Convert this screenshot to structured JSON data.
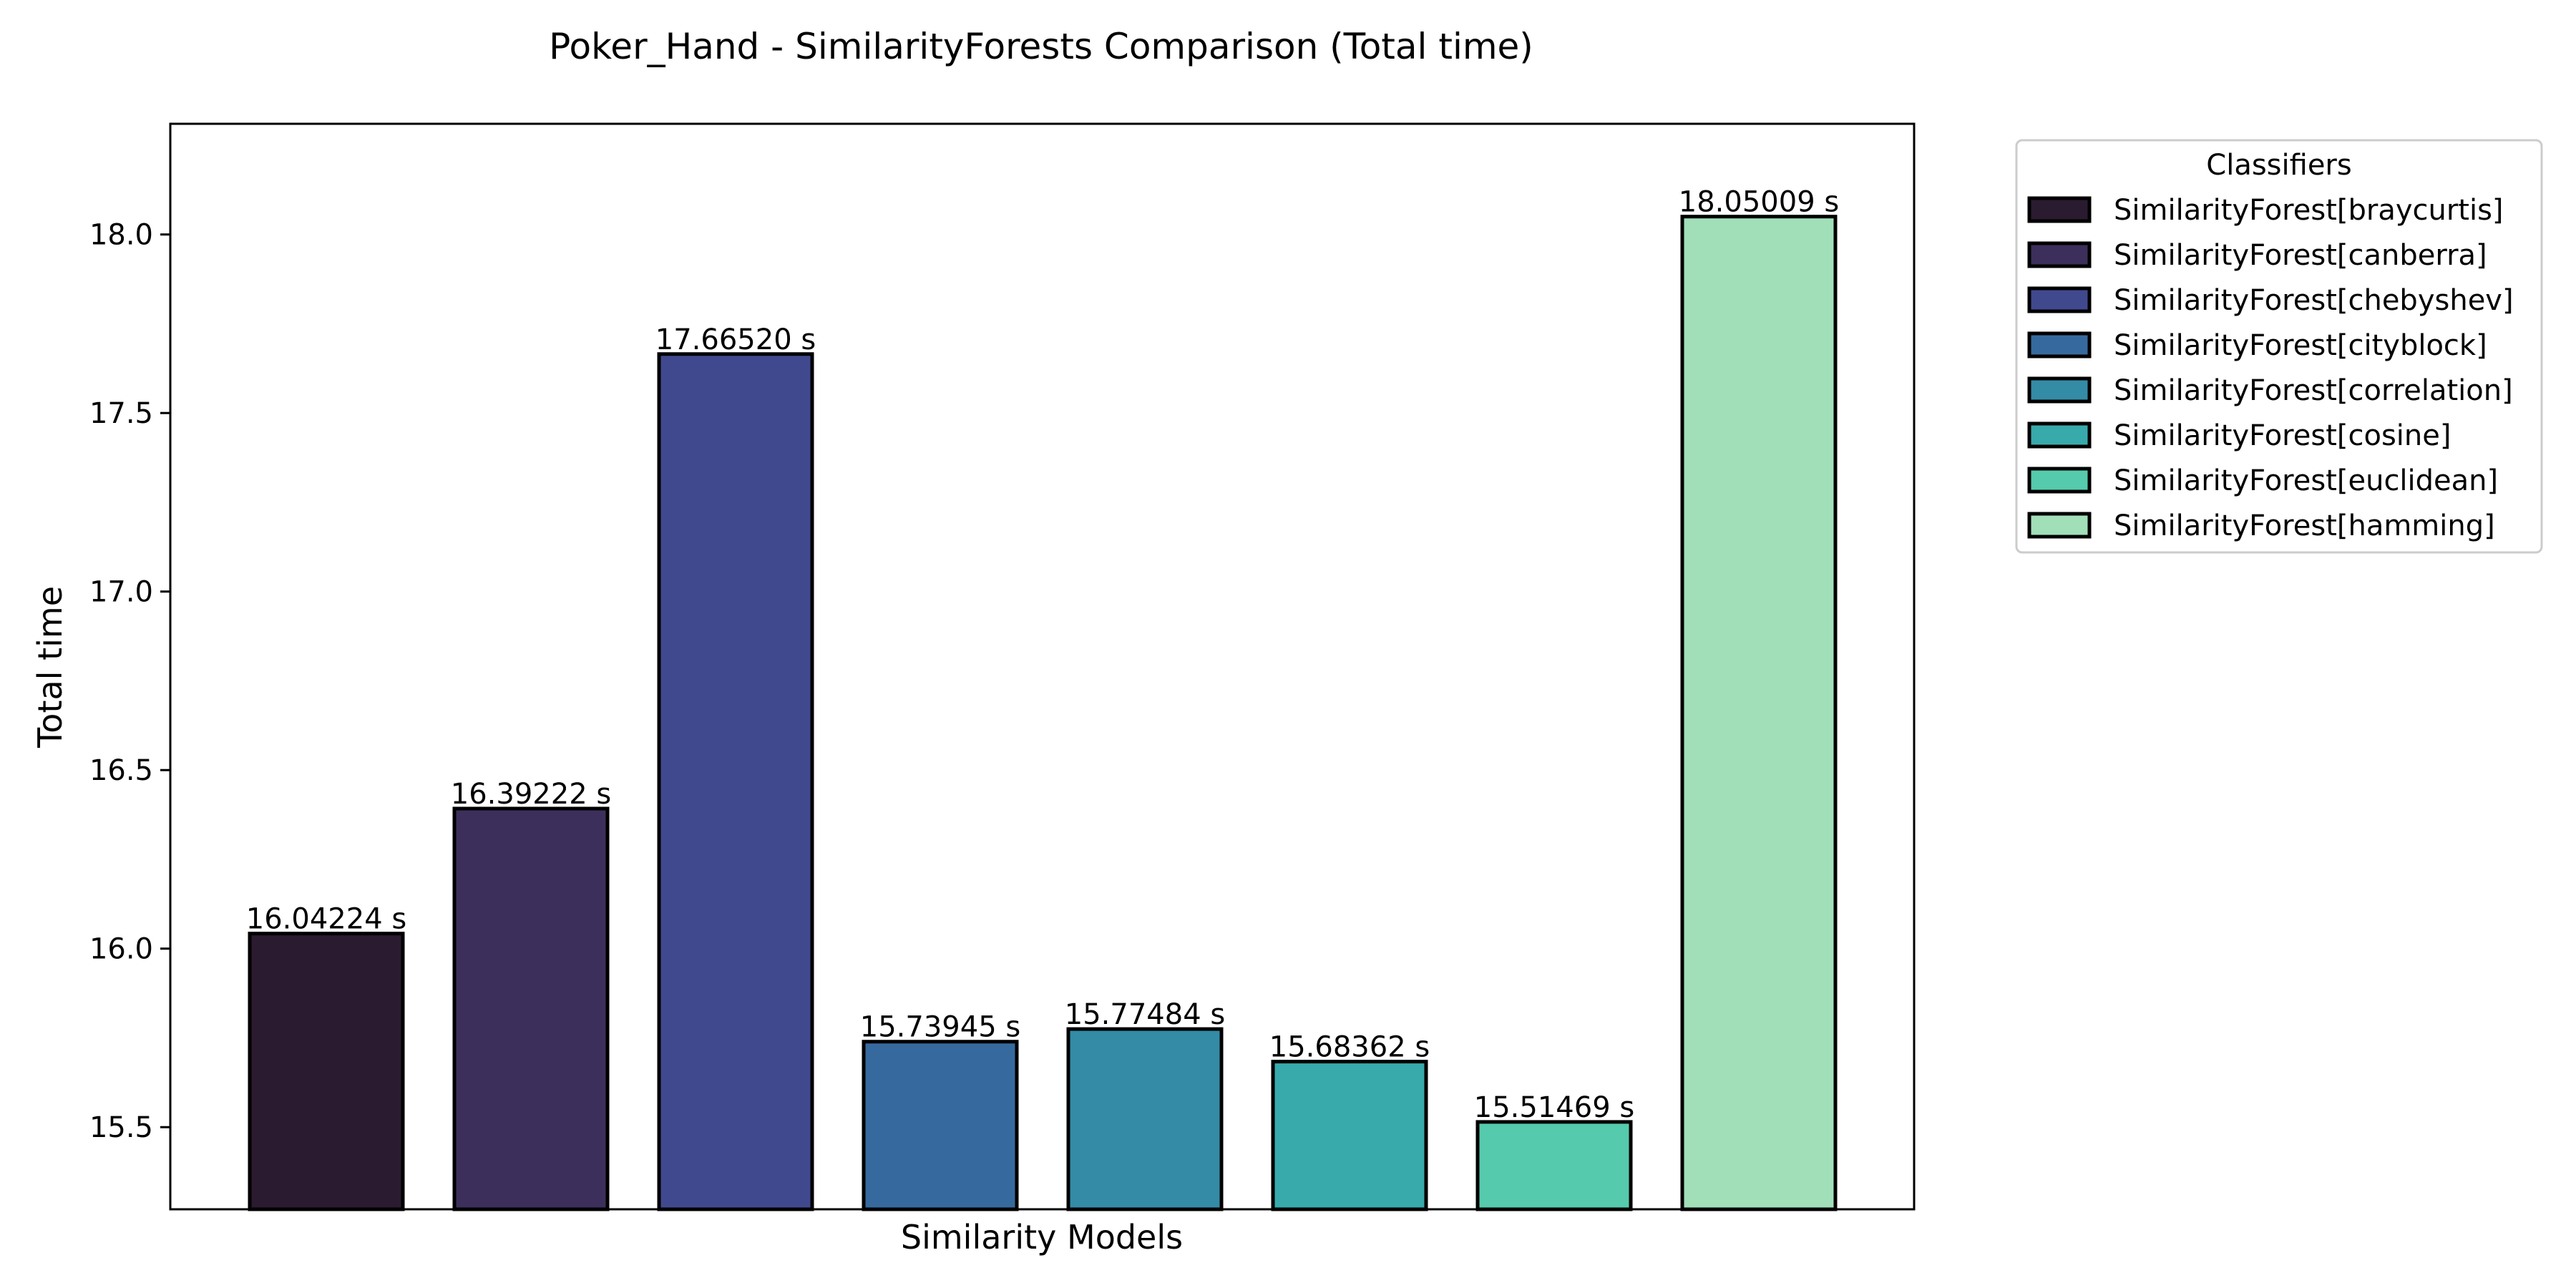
{
  "chart_data": {
    "type": "bar",
    "title": "Poker_Hand - SimilarityForests Comparison (Total time)",
    "xlabel": "Similarity Models",
    "ylabel": "Total time",
    "ylim": [
      15.27,
      18.31
    ],
    "yticks": [
      15.5,
      16.0,
      16.5,
      17.0,
      17.5,
      18.0
    ],
    "ytick_labels": [
      "15.5",
      "16.0",
      "16.5",
      "17.0",
      "17.5",
      "18.0"
    ],
    "grid": false,
    "legend_title": "Classifiers",
    "legend_placement": "outside top-right",
    "series": [
      {
        "name": "SimilarityForest[braycurtis]",
        "value": 16.04224,
        "label": "16.04224 s",
        "color": "#2a1b30"
      },
      {
        "name": "SimilarityForest[canberra]",
        "value": 16.39222,
        "label": "16.39222 s",
        "color": "#3d2f5b"
      },
      {
        "name": "SimilarityForest[chebyshev]",
        "value": 17.6652,
        "label": "17.66520 s",
        "color": "#40498e"
      },
      {
        "name": "SimilarityForest[cityblock]",
        "value": 15.73945,
        "label": "15.73945 s",
        "color": "#366a9f"
      },
      {
        "name": "SimilarityForest[correlation]",
        "value": 15.77484,
        "label": "15.77484 s",
        "color": "#348ba6"
      },
      {
        "name": "SimilarityForest[cosine]",
        "value": 15.68362,
        "label": "15.68362 s",
        "color": "#38aaac"
      },
      {
        "name": "SimilarityForest[euclidean]",
        "value": 15.51469,
        "label": "15.51469 s",
        "color": "#55caad"
      },
      {
        "name": "SimilarityForest[hamming]",
        "value": 18.05009,
        "label": "18.05009 s",
        "color": "#a1dfb9"
      }
    ]
  }
}
